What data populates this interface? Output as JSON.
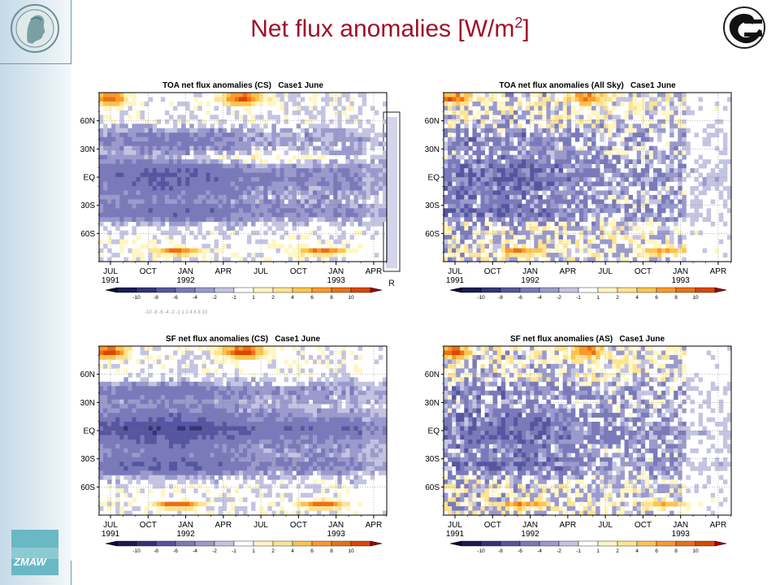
{
  "slide": {
    "title": "Net flux anomalies [W/m",
    "title_sup": "2",
    "title_end": "]"
  },
  "colors": {
    "title": "#a0102a",
    "neg": [
      "#1a1a55",
      "#33337a",
      "#5656a0",
      "#7a7abb",
      "#9a9acd",
      "#c4c4e2"
    ],
    "pos": [
      "#fff6c2",
      "#fee391",
      "#fec44f",
      "#fe9929",
      "#ec7014",
      "#d94801"
    ]
  },
  "shared": {
    "lat_labels": [
      "60N",
      "30N",
      "EQ",
      "30S",
      "60S"
    ],
    "time_labels": [
      "JUL",
      "OCT",
      "JAN",
      "APR",
      "JUL",
      "OCT",
      "JAN",
      "APR"
    ],
    "year_labels": [
      {
        "after": 0,
        "text": "1991"
      },
      {
        "after": 2,
        "text": "1992"
      },
      {
        "after": 6,
        "text": "1993"
      }
    ],
    "colorbar_labels": [
      "-10",
      "-8",
      "-6",
      "-4",
      "-2",
      "-1",
      "1",
      "2",
      "4",
      "6",
      "8",
      "10"
    ]
  },
  "chart_data": [
    {
      "type": "heatmap",
      "title": "TOA net flux anomalies (CS)   Case1 June",
      "ylim_labels": [
        "60N",
        "30N",
        "EQ",
        "30S",
        "60S"
      ],
      "x_ticks": [
        "JUL 1991",
        "OCT",
        "JAN 1992",
        "APR",
        "JUL",
        "OCT",
        "JAN 1993",
        "APR"
      ],
      "colorbar": [
        -10,
        -8,
        -6,
        -4,
        -2,
        -1,
        1,
        2,
        4,
        6,
        8,
        10
      ]
    },
    {
      "type": "heatmap",
      "title": "TOA net flux anomalies (All Sky)   Case1 June",
      "ylim_labels": [
        "60N",
        "30N",
        "EQ",
        "30S",
        "60S"
      ],
      "x_ticks": [
        "JUL 1991",
        "OCT",
        "JAN 1992",
        "APR",
        "JUL",
        "OCT",
        "JAN 1993",
        "APR"
      ],
      "colorbar": [
        -10,
        -8,
        -6,
        -4,
        -2,
        -1,
        1,
        2,
        4,
        6,
        8,
        10
      ]
    },
    {
      "type": "heatmap",
      "title": "SF net flux anomalies (CS)   Case1 June",
      "ylim_labels": [
        "60N",
        "30N",
        "EQ",
        "30S",
        "60S"
      ],
      "x_ticks": [
        "JUL 1991",
        "OCT",
        "JAN 1992",
        "APR",
        "JUL",
        "OCT",
        "JAN 1993",
        "APR"
      ],
      "colorbar": [
        -10,
        -8,
        -6,
        -4,
        -2,
        -1,
        1,
        2,
        4,
        6,
        8,
        10
      ]
    },
    {
      "type": "heatmap",
      "title": "SF net flux anomalies (AS)   Case1 June",
      "ylim_labels": [
        "60N",
        "30N",
        "EQ",
        "30S",
        "60S"
      ],
      "x_ticks": [
        "JUL 1991",
        "OCT",
        "JAN 1992",
        "APR",
        "JUL",
        "OCT",
        "JAN 1993",
        "APR"
      ],
      "colorbar": [
        -10,
        -8,
        -6,
        -4,
        -2,
        -1,
        1,
        2,
        4,
        6,
        8,
        10
      ]
    }
  ]
}
